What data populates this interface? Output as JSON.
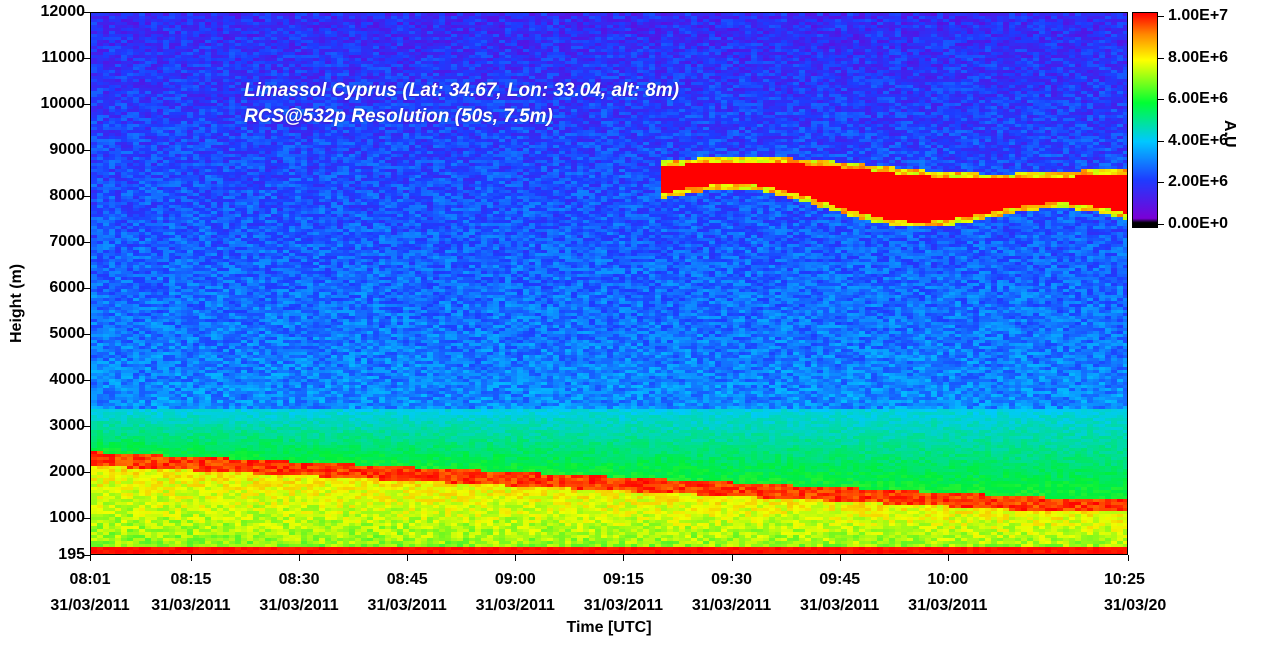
{
  "chart_data": {
    "type": "heatmap",
    "title": "",
    "annotations": [
      "Limassol Cyprus (Lat: 34.67, Lon: 33.04, alt: 8m)",
      "RCS@532p Resolution (50s, 7.5m)"
    ],
    "xlabel": "Time [UTC]",
    "ylabel": "Height (m)",
    "x_ticks": [
      {
        "time": "08:01",
        "date": "31/03/2011"
      },
      {
        "time": "08:15",
        "date": "31/03/2011"
      },
      {
        "time": "08:30",
        "date": "31/03/2011"
      },
      {
        "time": "08:45",
        "date": "31/03/2011"
      },
      {
        "time": "09:00",
        "date": "31/03/2011"
      },
      {
        "time": "09:15",
        "date": "31/03/2011"
      },
      {
        "time": "09:30",
        "date": "31/03/2011"
      },
      {
        "time": "09:45",
        "date": "31/03/2011"
      },
      {
        "time": "10:00",
        "date": "31/03/2011"
      },
      {
        "time": "10:25",
        "date": "31/03/20"
      }
    ],
    "xlim": [
      "08:01",
      "10:25"
    ],
    "y_ticks": [
      "195",
      "1000",
      "2000",
      "3000",
      "4000",
      "5000",
      "6000",
      "7000",
      "8000",
      "9000",
      "10000",
      "11000",
      "12000"
    ],
    "ylim": [
      195,
      12000
    ],
    "colorbar": {
      "label": "A.U",
      "ticks": [
        "0.00E+0",
        "2.00E+6",
        "4.00E+6",
        "6.00E+6",
        "8.00E+6",
        "1.00E+7"
      ],
      "range": [
        0,
        10000000
      ],
      "colormap": [
        "#000000",
        "#7a00d6",
        "#1e3cff",
        "#00c8ff",
        "#00ff33",
        "#ffff00",
        "#ff8800",
        "#ff0000"
      ]
    },
    "features": [
      {
        "name": "surface layer",
        "height_range_m": [
          195,
          400
        ],
        "value": 10000000
      },
      {
        "name": "boundary layer top",
        "start": {
          "time": "08:01",
          "height_m": 2300
        },
        "end": {
          "time": "10:15",
          "height_m": 1300
        },
        "value": 9500000
      },
      {
        "name": "high cloud",
        "time_range": [
          "09:20",
          "10:25"
        ],
        "height_range_m": [
          7500,
          8700
        ],
        "value": 10000000
      }
    ]
  }
}
